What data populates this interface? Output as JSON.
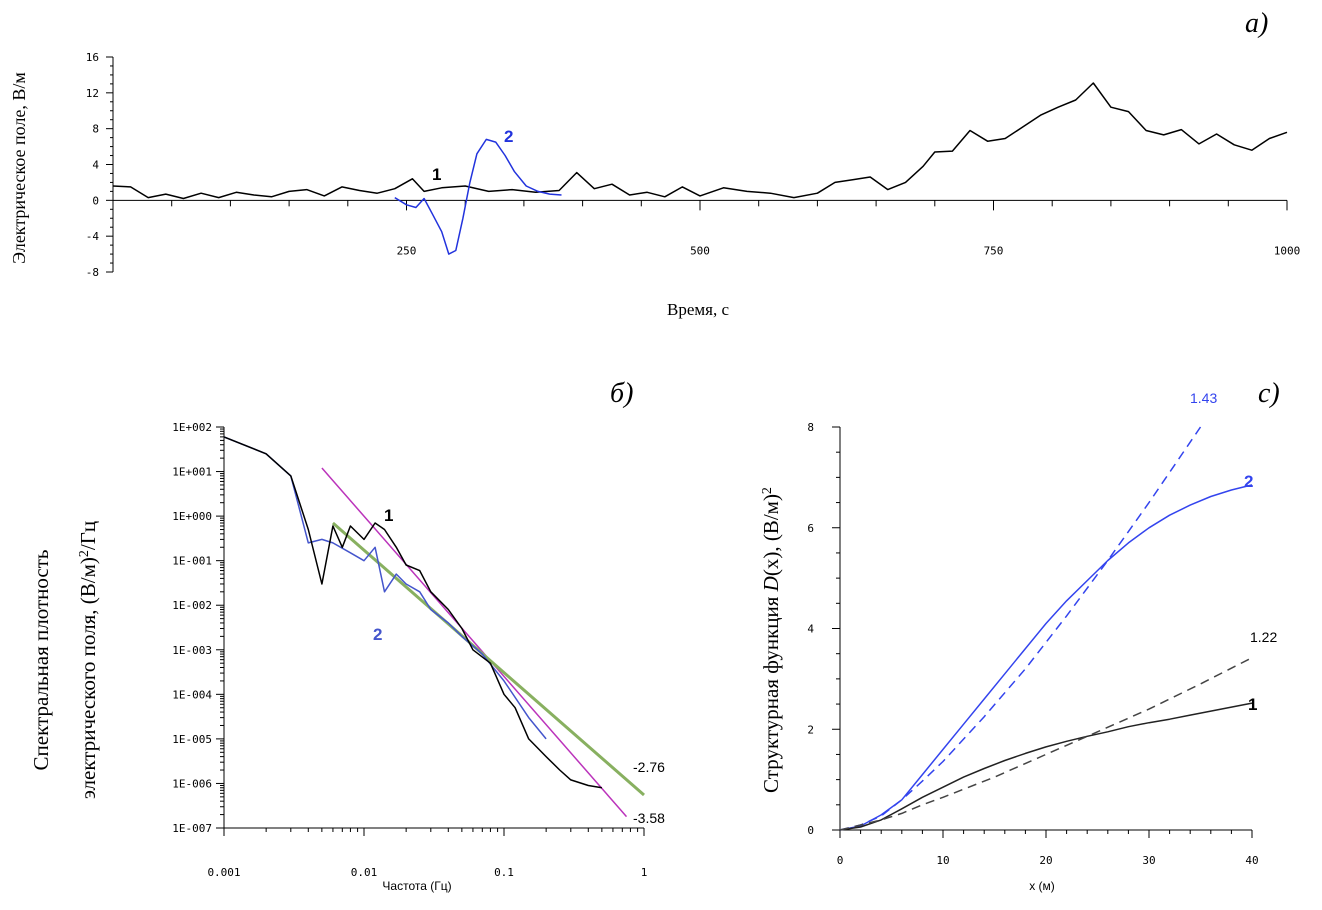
{
  "chart_data": [
    {
      "panel": "а)",
      "type": "line",
      "xlabel": "Время, с",
      "ylabel": "Электрическое поле, В/м",
      "xlim": [
        0,
        1000
      ],
      "ylim": [
        -8,
        16
      ],
      "xticks": [
        "250",
        "500",
        "750",
        "1000"
      ],
      "yticks": [
        "16",
        "12",
        "8",
        "4",
        "0",
        "-4",
        "-8"
      ],
      "series": [
        {
          "name": "1",
          "color": "#000000",
          "x": [
            0,
            15,
            30,
            45,
            60,
            75,
            90,
            105,
            120,
            135,
            150,
            165,
            180,
            195,
            210,
            225,
            240,
            255,
            265,
            280,
            300,
            320,
            340,
            360,
            380,
            395,
            410,
            425,
            440,
            455,
            470,
            485,
            500,
            520,
            540,
            560,
            580,
            600,
            615,
            630,
            645,
            660,
            675,
            690,
            700,
            715,
            730,
            745,
            760,
            775,
            790,
            805,
            820,
            835,
            850,
            865,
            880,
            895,
            910,
            925,
            940,
            955,
            970,
            985,
            1000
          ],
          "y": [
            1.6,
            1.5,
            0.3,
            0.7,
            0.2,
            0.8,
            0.3,
            0.9,
            0.6,
            0.4,
            1.0,
            1.2,
            0.5,
            1.5,
            1.1,
            0.8,
            1.3,
            2.4,
            1.0,
            1.4,
            1.6,
            1.0,
            1.2,
            0.9,
            1.1,
            3.1,
            1.3,
            1.8,
            0.6,
            0.9,
            0.4,
            1.5,
            0.5,
            1.4,
            1.0,
            0.8,
            0.3,
            0.8,
            2.0,
            2.3,
            2.6,
            1.2,
            2.0,
            3.8,
            5.4,
            5.5,
            7.8,
            6.6,
            6.9,
            8.2,
            9.5,
            10.4,
            11.2,
            13.1,
            10.4,
            9.9,
            7.8,
            7.3,
            7.9,
            6.3,
            7.4,
            6.2,
            5.6,
            6.9,
            7.6
          ]
        },
        {
          "name": "2",
          "color": "#2233dd",
          "x": [
            240,
            250,
            258,
            265,
            272,
            280,
            286,
            292,
            298,
            304,
            310,
            318,
            326,
            334,
            342,
            352,
            362,
            372,
            382
          ],
          "y": [
            0.3,
            -0.5,
            -0.8,
            0.2,
            -1.5,
            -3.5,
            -6.0,
            -5.6,
            -2.0,
            2.0,
            5.2,
            6.8,
            6.5,
            5.0,
            3.2,
            1.6,
            1.0,
            0.7,
            0.6
          ]
        }
      ]
    },
    {
      "panel": "б)",
      "type": "line",
      "scale": "log-log",
      "xlabel": "Частота (Гц)",
      "ylabel_line1": "Спектральная плотность",
      "ylabel_line2": "электрического поля, (В/м)",
      "ylabel_sup": "2",
      "ylabel_tail": "/Гц",
      "xlim": [
        0.001,
        1
      ],
      "ylim": [
        1e-07,
        100
      ],
      "xticks": [
        "0.001",
        "0.01",
        "0.1",
        "1"
      ],
      "yticks": [
        "1E+002",
        "1E+001",
        "1E+000",
        "1E-001",
        "1E-002",
        "1E-003",
        "1E-004",
        "1E-005",
        "1E-006",
        "1E-007"
      ],
      "series": [
        {
          "name": "1",
          "color": "#000000",
          "x": [
            0.001,
            0.002,
            0.003,
            0.004,
            0.005,
            0.006,
            0.007,
            0.008,
            0.01,
            0.012,
            0.014,
            0.017,
            0.02,
            0.025,
            0.03,
            0.04,
            0.05,
            0.06,
            0.08,
            0.1,
            0.12,
            0.15,
            0.2,
            0.25,
            0.3,
            0.4,
            0.5
          ],
          "y": [
            60,
            25,
            8,
            0.5,
            0.03,
            0.6,
            0.2,
            0.6,
            0.3,
            0.7,
            0.5,
            0.2,
            0.08,
            0.06,
            0.02,
            0.008,
            0.003,
            0.001,
            0.0005,
            0.0001,
            5e-05,
            1e-05,
            4e-06,
            2e-06,
            1.2e-06,
            9e-07,
            8e-07
          ]
        },
        {
          "name": "2",
          "color": "#4455cc",
          "x": [
            0.001,
            0.002,
            0.003,
            0.004,
            0.005,
            0.006,
            0.008,
            0.01,
            0.012,
            0.014,
            0.017,
            0.02,
            0.025,
            0.03,
            0.04,
            0.05,
            0.07,
            0.1,
            0.15,
            0.2
          ],
          "y": [
            60,
            25,
            8,
            0.25,
            0.3,
            0.25,
            0.15,
            0.1,
            0.2,
            0.02,
            0.05,
            0.03,
            0.02,
            0.008,
            0.004,
            0.002,
            0.0008,
            0.0002,
            3e-05,
            1e-05
          ]
        },
        {
          "name": "-3.58",
          "color": "#bb33bb",
          "x": [
            0.005,
            0.75
          ],
          "y": [
            12,
            1.8e-07
          ]
        },
        {
          "name": "-2.76",
          "color": "#88b060",
          "x": [
            0.006,
            1.0
          ],
          "y": [
            0.7,
            5.5e-07
          ]
        }
      ]
    },
    {
      "panel": "с)",
      "type": "line",
      "xlabel": "x (м)",
      "ylabel_main": "Структурная функция ",
      "ylabel_italic": "D",
      "ylabel_paren": "(x), (В/м)",
      "ylabel_sup": "2",
      "xlim": [
        0,
        40
      ],
      "ylim": [
        0,
        8
      ],
      "xticks": [
        "0",
        "10",
        "20",
        "30",
        "40"
      ],
      "yticks": [
        "0",
        "2",
        "4",
        "6",
        "8"
      ],
      "series": [
        {
          "name": "2",
          "color": "#3344ee",
          "x": [
            0,
            2,
            4,
            6,
            8,
            10,
            12,
            14,
            16,
            18,
            20,
            22,
            24,
            26,
            28,
            30,
            32,
            34,
            36,
            38,
            40
          ],
          "y": [
            0,
            0.08,
            0.3,
            0.6,
            1.1,
            1.6,
            2.1,
            2.6,
            3.1,
            3.6,
            4.1,
            4.55,
            4.95,
            5.35,
            5.7,
            6.0,
            6.25,
            6.45,
            6.62,
            6.75,
            6.85
          ]
        },
        {
          "name": "1.43",
          "color": "#3344ee",
          "x": [
            0,
            2,
            4,
            6,
            8,
            10,
            14,
            18,
            22,
            26,
            30,
            35
          ],
          "y": [
            0,
            0.1,
            0.28,
            0.6,
            0.97,
            1.36,
            2.25,
            3.2,
            4.25,
            5.35,
            6.5,
            8.0
          ]
        },
        {
          "name": "1",
          "color": "#222222",
          "x": [
            0,
            2,
            4,
            6,
            8,
            10,
            12,
            14,
            16,
            18,
            20,
            22,
            24,
            26,
            28,
            30,
            32,
            34,
            36,
            38,
            40
          ],
          "y": [
            0,
            0.06,
            0.2,
            0.42,
            0.65,
            0.85,
            1.05,
            1.22,
            1.38,
            1.52,
            1.65,
            1.76,
            1.86,
            1.95,
            2.05,
            2.13,
            2.2,
            2.28,
            2.36,
            2.44,
            2.52
          ]
        },
        {
          "name": "1.22",
          "color": "#444444",
          "x": [
            0,
            2,
            4,
            6,
            8,
            10,
            15,
            20,
            25,
            30,
            35,
            40
          ],
          "y": [
            0,
            0.1,
            0.2,
            0.33,
            0.5,
            0.65,
            1.05,
            1.5,
            1.95,
            2.4,
            2.9,
            3.42
          ]
        }
      ]
    }
  ]
}
